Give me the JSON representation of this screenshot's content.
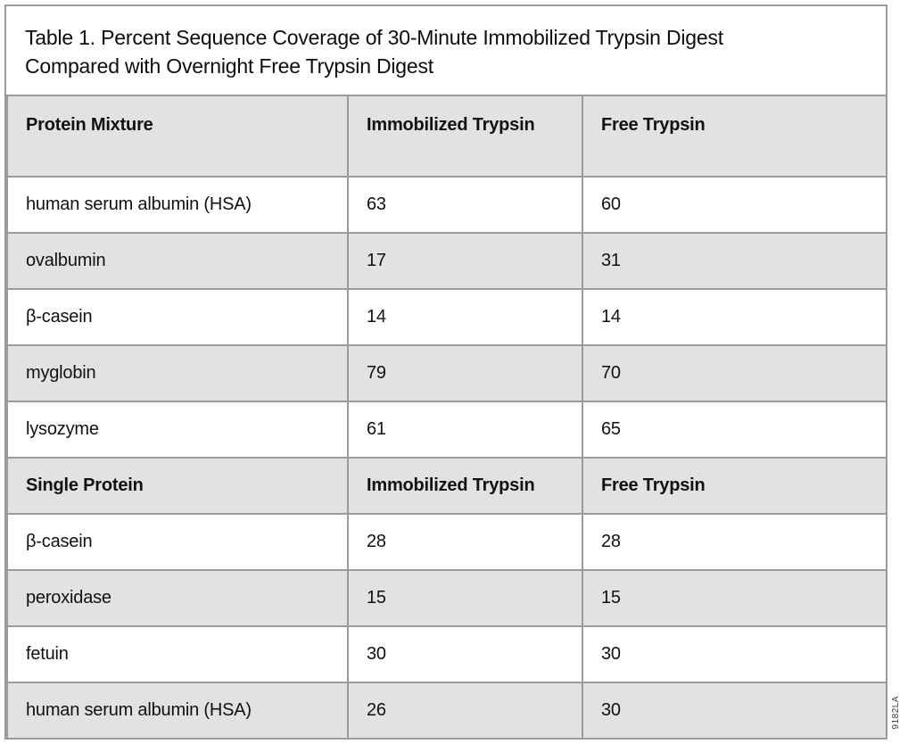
{
  "title": {
    "line1": "Table 1. Percent Sequence Coverage of 30-Minute Immobilized Trypsin Digest",
    "line2": "Compared with Overnight Free Trypsin Digest"
  },
  "side_code": "9182LA",
  "colors": {
    "header_and_stripe_bg": "#e2e2e2",
    "row_bg": "#ffffff",
    "border": "#9b9b9b",
    "text": "#111111"
  },
  "table": {
    "sections": [
      {
        "header": [
          "Protein Mixture",
          "Immobilized Trypsin",
          "Free Trypsin"
        ],
        "rows": [
          [
            "human serum albumin (HSA)",
            "63",
            "60"
          ],
          [
            "ovalbumin",
            "17",
            "31"
          ],
          [
            "β-casein",
            "14",
            "14"
          ],
          [
            "myglobin",
            "79",
            "70"
          ],
          [
            "lysozyme",
            "61",
            "65"
          ]
        ]
      },
      {
        "header": [
          "Single Protein",
          "Immobilized Trypsin",
          "Free Trypsin"
        ],
        "rows": [
          [
            "β-casein",
            "28",
            "28"
          ],
          [
            "peroxidase",
            "15",
            "15"
          ],
          [
            "fetuin",
            "30",
            "30"
          ],
          [
            "human serum albumin (HSA)",
            "26",
            "30"
          ]
        ]
      }
    ]
  }
}
